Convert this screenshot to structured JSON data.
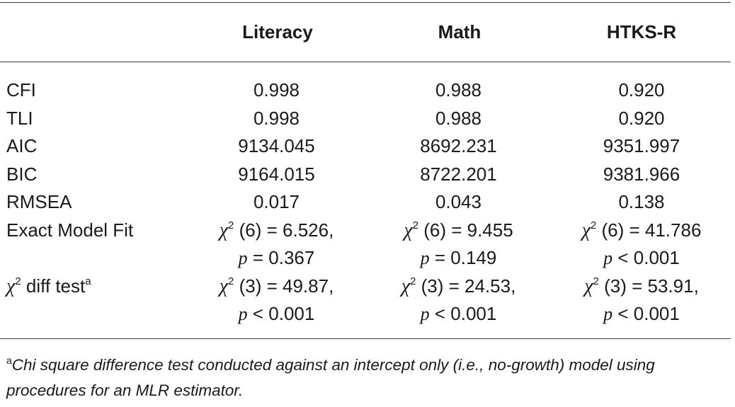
{
  "columns": {
    "c1": "Literacy",
    "c2": "Math",
    "c3": "HTKS-R"
  },
  "rows": {
    "cfi": {
      "label": "CFI",
      "c1": "0.998",
      "c2": "0.988",
      "c3": "0.920"
    },
    "tli": {
      "label": "TLI",
      "c1": "0.998",
      "c2": "0.988",
      "c3": "0.920"
    },
    "aic": {
      "label": "AIC",
      "c1": "9134.045",
      "c2": "8692.231",
      "c3": "9351.997"
    },
    "bic": {
      "label": "BIC",
      "c1": "9164.015",
      "c2": "8722.201",
      "c3": "9381.966"
    },
    "rmsea": {
      "label": "RMSEA",
      "c1": "0.017",
      "c2": "0.043",
      "c3": "0.138"
    },
    "exact": {
      "label": "Exact Model Fit",
      "c1_line1": " (6) = 6.526,",
      "c1_line2": " = 0.367",
      "c2_line1": " (6) = 9.455",
      "c2_line2": " = 0.149",
      "c3_line1": " (6) = 41.786",
      "c3_line2": " < 0.001"
    },
    "diff": {
      "label_tail": " diff test",
      "label_sup": "a",
      "c1_line1": " (3) = 49.87,",
      "c1_line2": " < 0.001",
      "c2_line1": " (3) = 24.53,",
      "c2_line2": " < 0.001",
      "c3_line1": " (3) = 53.91,",
      "c3_line2": " < 0.001"
    }
  },
  "symbols": {
    "chi": "χ",
    "squared": "2",
    "p": "p"
  },
  "footnote": {
    "marker": "a",
    "text": "Chi square difference test conducted against an intercept only (i.e., no-growth) model using procedures for an MLR estimator."
  }
}
